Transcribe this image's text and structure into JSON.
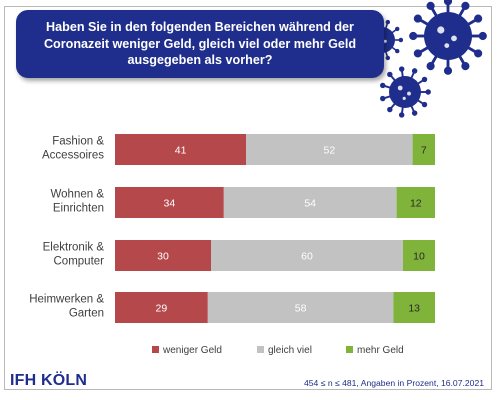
{
  "title": "Haben Sie in den folgenden Bereichen während der Coronazeit weniger Geld, gleich viel oder mehr Geld ausgegeben als vorher?",
  "logo": "IFH KÖLN",
  "note": "454 ≤ n ≤ 481,  Angaben in Prozent, 16.07.2021",
  "colors": {
    "weniger": "#b5484b",
    "gleich": "#c2c2c2",
    "mehr": "#7fb33a",
    "brand": "#1f2e8c"
  },
  "icons": [
    "virus-icon"
  ],
  "chart_data": {
    "type": "bar",
    "orientation": "horizontal",
    "stacked": true,
    "categories": [
      [
        "Fashion &",
        "Accessoires"
      ],
      [
        "Wohnen &",
        "Einrichten"
      ],
      [
        "Elektronik &",
        "Computer"
      ],
      [
        "Heimwerken &",
        "Garten"
      ]
    ],
    "series": [
      {
        "name": "weniger Geld",
        "values": [
          41,
          34,
          30,
          29
        ]
      },
      {
        "name": "gleich viel",
        "values": [
          52,
          54,
          60,
          58
        ]
      },
      {
        "name": "mehr Geld",
        "values": [
          7,
          12,
          10,
          13
        ]
      }
    ],
    "xlim": [
      0,
      100
    ],
    "legend": "bottom",
    "grid": false
  }
}
